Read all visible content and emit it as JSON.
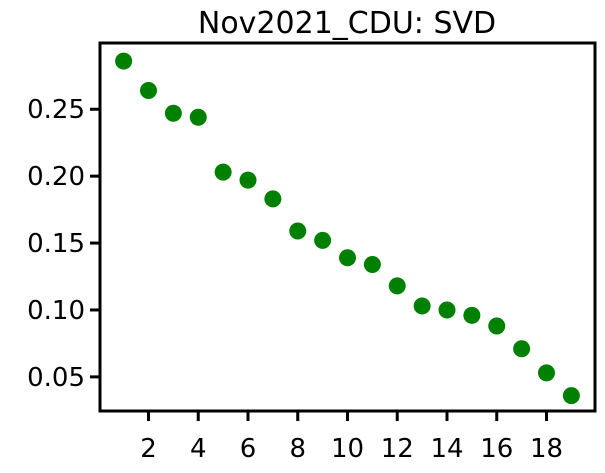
{
  "chart_data": {
    "type": "scatter",
    "title": "Nov2021_CDU: SVD",
    "xlabel": "",
    "ylabel": "",
    "xlim": [
      0.05,
      19.95
    ],
    "ylim": [
      0.0245,
      0.2995
    ],
    "x_ticks": [
      2,
      4,
      6,
      8,
      10,
      12,
      14,
      16,
      18
    ],
    "x_tick_labels": [
      "2",
      "4",
      "6",
      "8",
      "10",
      "12",
      "14",
      "16",
      "18"
    ],
    "y_ticks": [
      0.05,
      0.1,
      0.15,
      0.2,
      0.25
    ],
    "y_tick_labels": [
      "0.05",
      "0.10",
      "0.15",
      "0.20",
      "0.25"
    ],
    "grid": false,
    "legend": "none",
    "marker_color": "#008000",
    "series": [
      {
        "x": [
          1,
          2,
          3,
          4,
          5,
          6,
          7,
          8,
          9,
          10,
          11,
          12,
          13,
          14,
          15,
          16,
          17,
          18,
          19
        ],
        "y": [
          0.286,
          0.264,
          0.247,
          0.244,
          0.203,
          0.197,
          0.183,
          0.159,
          0.152,
          0.139,
          0.134,
          0.118,
          0.103,
          0.1,
          0.096,
          0.088,
          0.071,
          0.053,
          0.036
        ]
      }
    ]
  }
}
